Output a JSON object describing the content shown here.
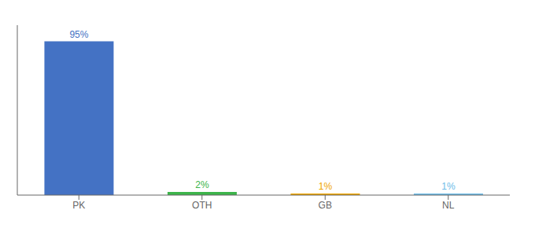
{
  "chart_data": {
    "type": "bar",
    "categories": [
      "PK",
      "OTH",
      "GB",
      "NL"
    ],
    "values": [
      95,
      2,
      1,
      1
    ],
    "value_labels": [
      "95%",
      "2%",
      "1%",
      "1%"
    ],
    "data_labels": true,
    "colors": [
      "#4472C4",
      "#3CB54A",
      "#F0A500",
      "#6DBBE8"
    ],
    "ylim": [
      0,
      105
    ],
    "tick_labels": "x",
    "grid": false
  }
}
